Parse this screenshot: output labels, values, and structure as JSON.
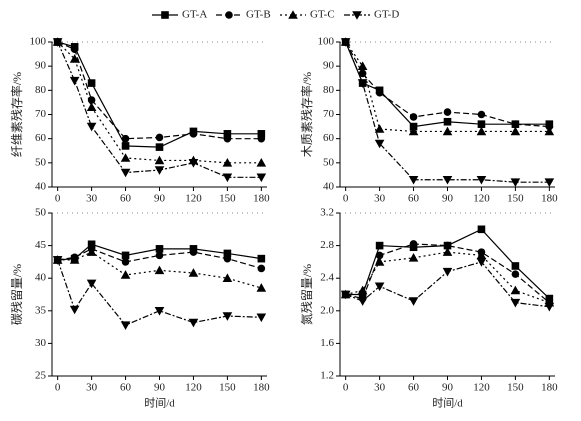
{
  "chart_data": [
    {
      "type": "line",
      "ylabel": "纤维素残存率/%",
      "x": [
        0,
        15,
        30,
        60,
        90,
        120,
        150,
        180
      ],
      "xlim": [
        -5,
        185
      ],
      "xticks": [
        0,
        30,
        60,
        90,
        120,
        150,
        180
      ],
      "ylim": [
        40,
        100
      ],
      "yticks": [
        40,
        50,
        60,
        70,
        80,
        90,
        100
      ],
      "series": [
        {
          "name": "GT-A",
          "color": "#000000",
          "marker": "square",
          "dash": "none",
          "values": [
            100,
            98,
            83,
            57,
            56.5,
            63,
            62,
            62
          ]
        },
        {
          "name": "GT-B",
          "color": "#000000",
          "marker": "circle",
          "dash": "6,3",
          "values": [
            100,
            97,
            76,
            60,
            60.5,
            62,
            60,
            60
          ]
        },
        {
          "name": "GT-C",
          "color": "#000000",
          "marker": "triangle-up",
          "dash": "2,3",
          "values": [
            100,
            93,
            73,
            52,
            51,
            51,
            50,
            50
          ]
        },
        {
          "name": "GT-D",
          "color": "#000000",
          "marker": "triangle-down",
          "dash": "6,2,2,2",
          "values": [
            100,
            84,
            65,
            46,
            47,
            50,
            44,
            44
          ]
        }
      ]
    },
    {
      "type": "line",
      "ylabel": "木质素残存率/%",
      "x": [
        0,
        15,
        30,
        60,
        90,
        120,
        150,
        180
      ],
      "xlim": [
        -5,
        185
      ],
      "xticks": [
        0,
        30,
        60,
        90,
        120,
        150,
        180
      ],
      "ylim": [
        40,
        100
      ],
      "yticks": [
        40,
        50,
        60,
        70,
        80,
        90,
        100
      ],
      "series": [
        {
          "color": "#000000",
          "marker": "square",
          "dash": "none",
          "values": [
            100,
            83,
            80,
            65,
            67,
            66,
            66,
            66
          ]
        },
        {
          "color": "#000000",
          "marker": "circle",
          "dash": "6,3",
          "values": [
            100,
            87,
            79,
            69,
            71,
            70,
            66,
            65
          ]
        },
        {
          "color": "#000000",
          "marker": "triangle-up",
          "dash": "2,3",
          "values": [
            100,
            90,
            64,
            63,
            63,
            63,
            63,
            63
          ]
        },
        {
          "color": "#000000",
          "marker": "triangle-down",
          "dash": "6,2,2,2",
          "values": [
            100,
            83,
            58,
            43,
            43,
            43,
            42,
            42
          ]
        }
      ]
    },
    {
      "type": "line",
      "ylabel": "碳残留量/%",
      "xlabel": "时间/d",
      "x": [
        0,
        15,
        30,
        60,
        90,
        120,
        150,
        180
      ],
      "xlim": [
        -5,
        185
      ],
      "xticks": [
        0,
        30,
        60,
        90,
        120,
        150,
        180
      ],
      "ylim": [
        25,
        50
      ],
      "yticks": [
        25,
        30,
        35,
        40,
        45,
        50
      ],
      "series": [
        {
          "color": "#000000",
          "marker": "square",
          "dash": "none",
          "values": [
            42.8,
            43,
            45.2,
            43.5,
            44.5,
            44.5,
            43.8,
            43
          ]
        },
        {
          "color": "#000000",
          "marker": "circle",
          "dash": "6,3",
          "values": [
            42.8,
            43.2,
            44.5,
            42.5,
            43.5,
            44,
            43,
            41.5
          ]
        },
        {
          "color": "#000000",
          "marker": "triangle-up",
          "dash": "2,3",
          "values": [
            42.8,
            42.8,
            44,
            40.5,
            41.2,
            40.8,
            40,
            38.5
          ]
        },
        {
          "color": "#000000",
          "marker": "triangle-down",
          "dash": "6,2,2,2",
          "values": [
            42.8,
            35.2,
            39.2,
            32.8,
            35,
            33.2,
            34.2,
            34
          ]
        }
      ]
    },
    {
      "type": "line",
      "ylabel": "氮残留量/%",
      "xlabel": "时间/d",
      "x": [
        0,
        15,
        30,
        60,
        90,
        120,
        150,
        180
      ],
      "xlim": [
        -5,
        185
      ],
      "xticks": [
        0,
        30,
        60,
        90,
        120,
        150,
        180
      ],
      "ylim": [
        1.2,
        3.2
      ],
      "yticks": [
        1.2,
        1.6,
        {
          "value": 2,
          "label": "2.0"
        },
        2.4,
        2.8,
        3.2
      ],
      "series": [
        {
          "color": "#000000",
          "marker": "square",
          "dash": "none",
          "values": [
            2.2,
            2.2,
            2.8,
            2.78,
            2.8,
            3.0,
            2.55,
            2.15
          ]
        },
        {
          "color": "#000000",
          "marker": "circle",
          "dash": "6,3",
          "values": [
            2.2,
            2.15,
            2.68,
            2.82,
            2.8,
            2.72,
            2.45,
            2.1
          ]
        },
        {
          "color": "#000000",
          "marker": "triangle-up",
          "dash": "2,3",
          "values": [
            2.2,
            2.25,
            2.6,
            2.65,
            2.72,
            2.68,
            2.25,
            2.1
          ]
        },
        {
          "color": "#000000",
          "marker": "triangle-down",
          "dash": "6,2,2,2",
          "values": [
            2.2,
            2.12,
            2.3,
            2.12,
            2.48,
            2.6,
            2.1,
            2.05
          ]
        }
      ]
    }
  ]
}
